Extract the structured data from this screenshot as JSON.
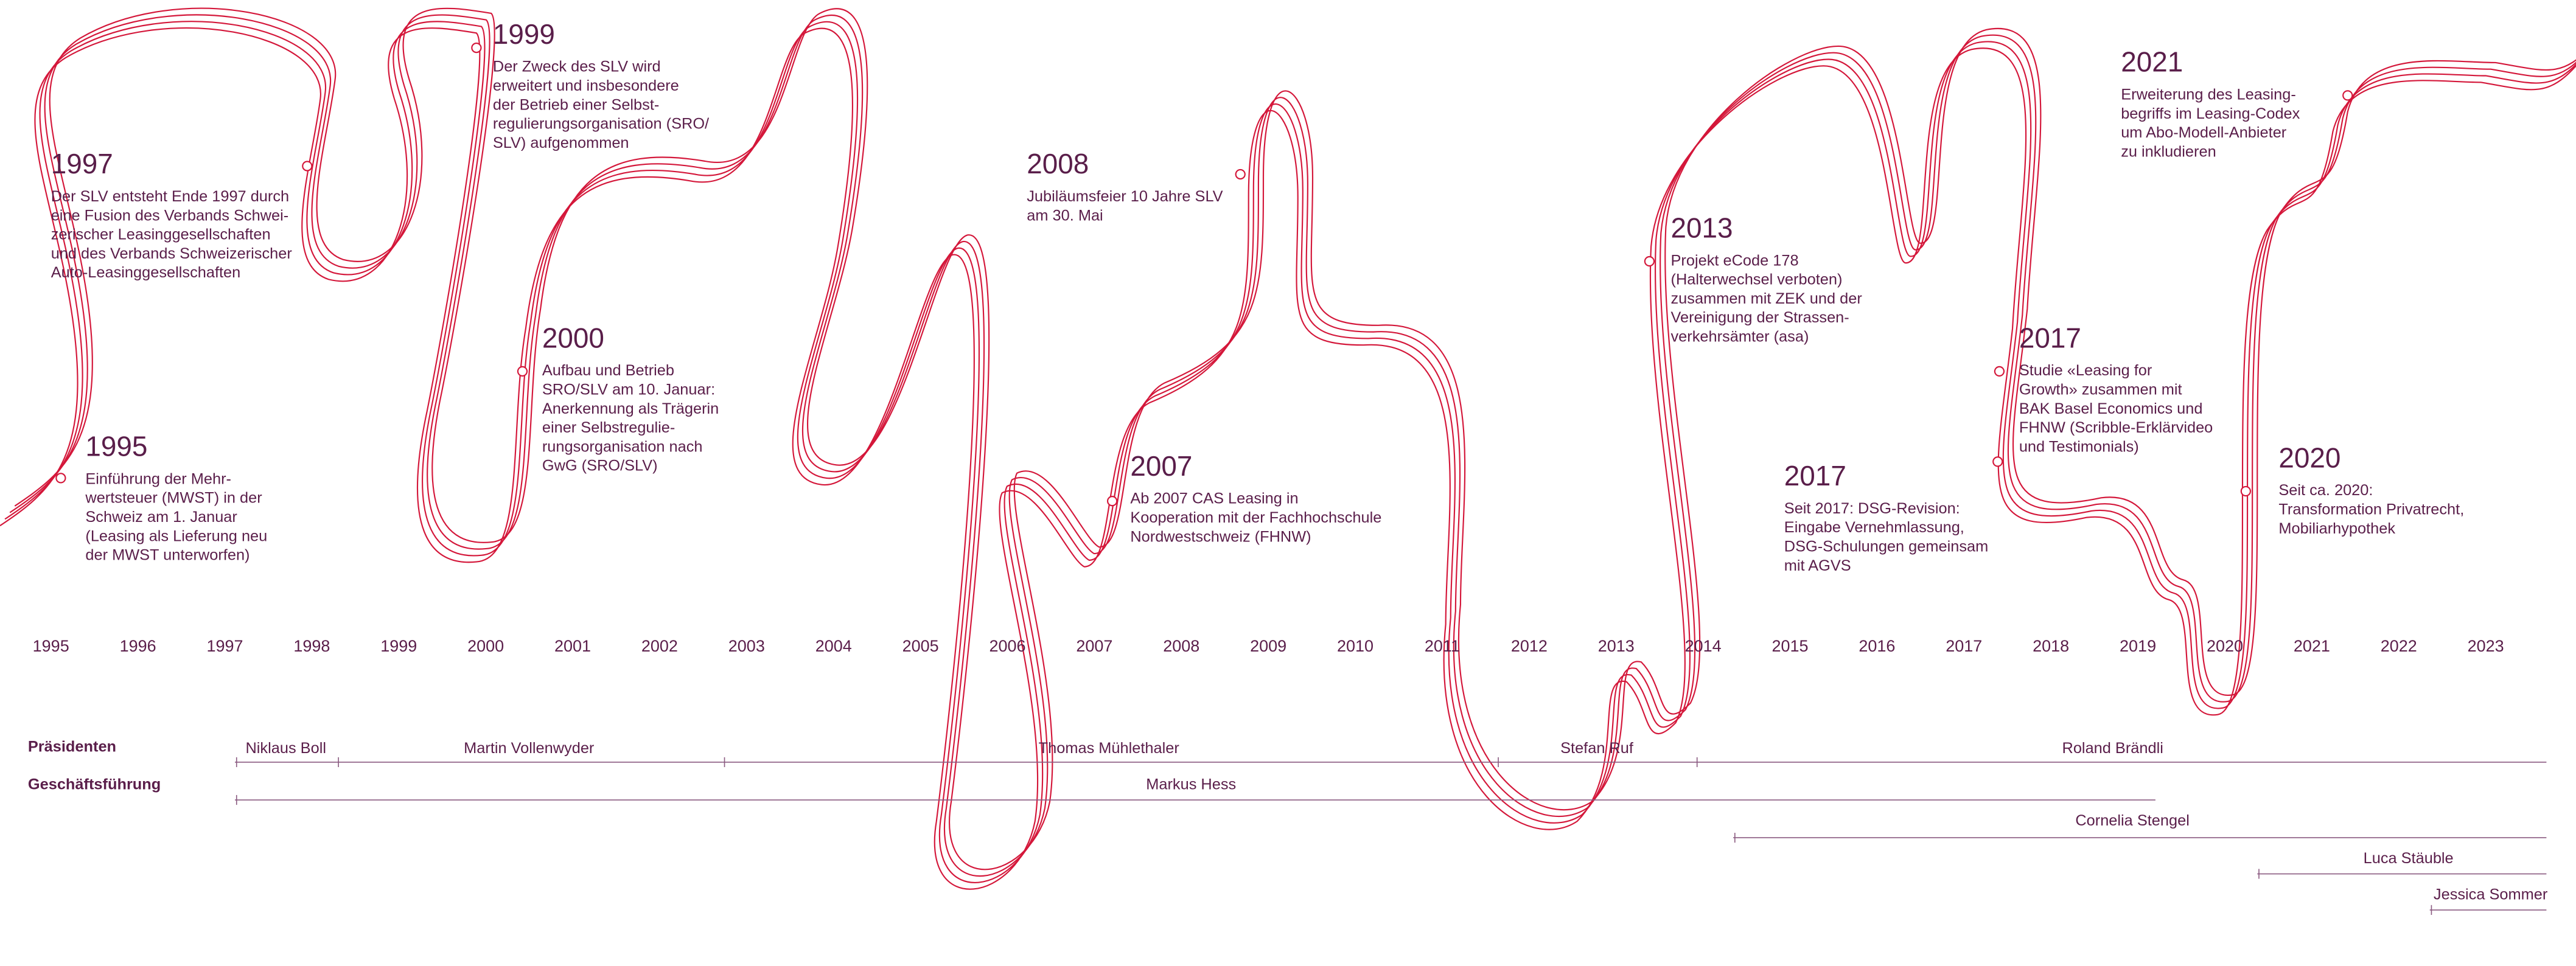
{
  "years": [
    "1995",
    "1996",
    "1997",
    "1998",
    "1999",
    "2000",
    "2001",
    "2002",
    "2003",
    "2004",
    "2005",
    "2006",
    "2007",
    "2008",
    "2009",
    "2010",
    "2011",
    "2012",
    "2013",
    "2014",
    "2015",
    "2016",
    "2017",
    "2018",
    "2019",
    "2020",
    "2021",
    "2022",
    "2023"
  ],
  "events": [
    {
      "year": "1995",
      "lines": [
        "Einführung der Mehr-",
        "wertsteuer (MWST) in der",
        "Schweiz am 1. Januar",
        "(Leasing als Lieferung neu",
        "der MWST unterworfen)"
      ]
    },
    {
      "year": "1997",
      "lines": [
        "Der SLV entsteht Ende 1997 durch",
        "eine Fusion des Verbands Schwei-",
        "zerischer Leasinggesellschaften",
        "und des Verbands Schweizerischer",
        "Auto-Leasinggesellschaften"
      ]
    },
    {
      "year": "1999",
      "lines": [
        "Der Zweck des SLV wird",
        "erweitert und insbesondere",
        "der Betrieb einer Selbst-",
        "regulierungsorganisation (SRO/",
        "SLV) aufgenommen"
      ]
    },
    {
      "year": "2000",
      "lines": [
        "Aufbau und Betrieb",
        "SRO/SLV am 10. Januar:",
        "Anerkennung als Trägerin",
        "einer Selbstregulie-",
        "rungsorganisation nach",
        "GwG (SRO/SLV)"
      ]
    },
    {
      "year": "2008",
      "lines": [
        "Jubiläumsfeier 10 Jahre SLV",
        "am 30. Mai"
      ]
    },
    {
      "year": "2007",
      "lines": [
        "Ab 2007 CAS Leasing in",
        "Kooperation mit der Fachhochschule",
        "Nordwestschweiz (FHNW)"
      ]
    },
    {
      "year": "2013",
      "lines": [
        "Projekt eCode 178",
        "(Halterwechsel verboten)",
        "zusammen mit ZEK und der",
        "Vereinigung der Strassen-",
        "verkehrsämter (asa)"
      ]
    },
    {
      "year": "2017",
      "lines": [
        "Seit 2017: DSG-Revision:",
        "Eingabe Vernehmlassung,",
        "DSG-Schulungen gemeinsam",
        "mit AGVS"
      ]
    },
    {
      "year": "2017",
      "lines": [
        "Studie «Leasing for",
        "Growth» zusammen mit",
        "BAK Basel Economics und",
        "FHNW (Scribble-Erklärvideo",
        "und Testimonials)"
      ]
    },
    {
      "year": "2021",
      "lines": [
        "Erweiterung des Leasing-",
        "begriffs im Leasing-Codex",
        "um Abo-Modell-Anbieter",
        "zu inkludieren"
      ]
    },
    {
      "year": "2020",
      "lines": [
        "Seit ca. 2020:",
        "Transformation Privatrecht,",
        "Mobiliarhypothek"
      ]
    }
  ],
  "rows": [
    {
      "label": "Präsidenten",
      "people": [
        "Niklaus Boll",
        "Martin Vollenwyder",
        "Thomas Mühlethaler",
        "Stefan Ruf",
        "Roland Brändli"
      ]
    },
    {
      "label": "Geschäftsführung",
      "people": [
        "Markus Hess",
        "Cornelia Stengel",
        "Luca Stäuble",
        "Jessica Sommer"
      ]
    }
  ]
}
